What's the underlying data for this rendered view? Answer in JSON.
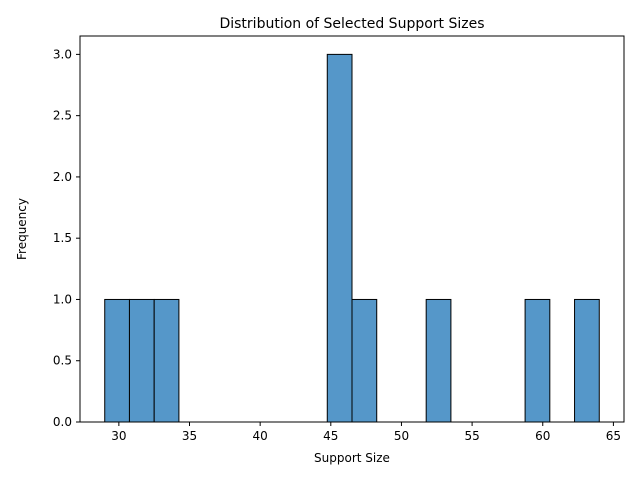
{
  "chart_data": {
    "type": "bar",
    "title": "Distribution of Selected Support Sizes",
    "xlabel": "Support Size",
    "ylabel": "Frequency",
    "xlim": [
      27.25,
      65.75
    ],
    "ylim": [
      0,
      3.15
    ],
    "x_ticks": [
      30,
      35,
      40,
      45,
      50,
      55,
      60,
      65
    ],
    "x_tick_labels": [
      "30",
      "35",
      "40",
      "45",
      "50",
      "55",
      "60",
      "65"
    ],
    "y_ticks": [
      0,
      0.5,
      1,
      1.5,
      2,
      2.5,
      3
    ],
    "y_tick_labels": [
      "0.0",
      "0.5",
      "1.0",
      "1.5",
      "2.0",
      "2.5",
      "3.0"
    ],
    "grid": false,
    "bar_color": "#5597c9",
    "bar_edge_color": "#000000",
    "bins": [
      {
        "start": 29.0,
        "end": 30.75,
        "count": 1
      },
      {
        "start": 30.75,
        "end": 32.5,
        "count": 1
      },
      {
        "start": 32.5,
        "end": 34.25,
        "count": 1
      },
      {
        "start": 44.75,
        "end": 46.5,
        "count": 3
      },
      {
        "start": 46.5,
        "end": 48.25,
        "count": 1
      },
      {
        "start": 51.75,
        "end": 53.5,
        "count": 1
      },
      {
        "start": 58.75,
        "end": 60.5,
        "count": 1
      },
      {
        "start": 62.25,
        "end": 64.0,
        "count": 1
      }
    ]
  }
}
